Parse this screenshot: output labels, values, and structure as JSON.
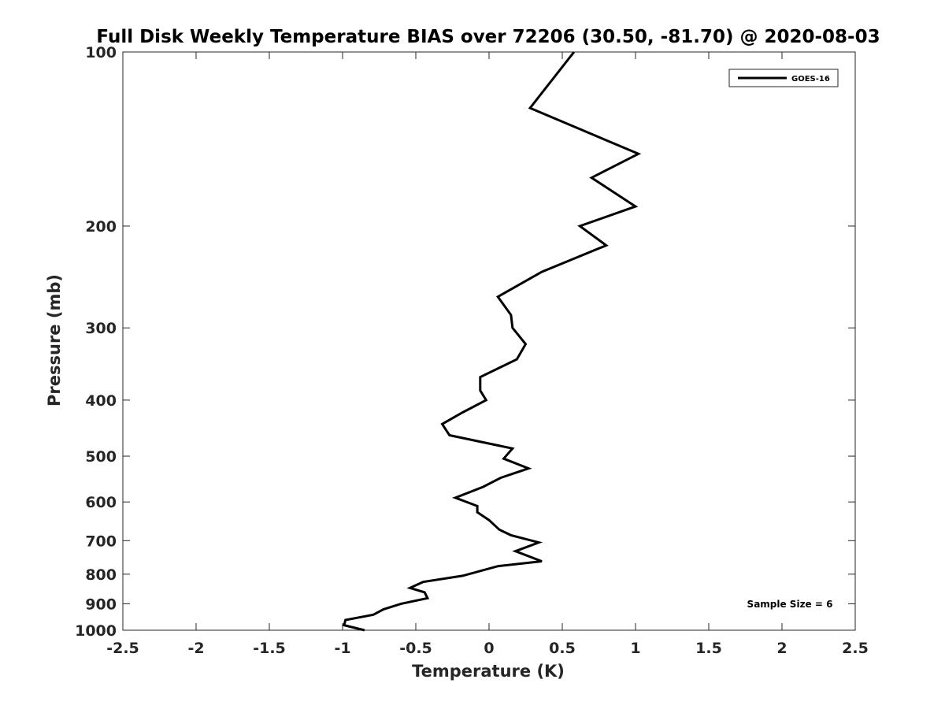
{
  "chart_data": {
    "type": "line",
    "title": "Full Disk Weekly Temperature BIAS over 72206 (30.50, -81.70) @ 2020-08-03",
    "xlabel": "Temperature (K)",
    "ylabel": "Pressure (mb)",
    "xlim": [
      -2.5,
      2.5
    ],
    "ylim": [
      100,
      1000
    ],
    "yscale": "log",
    "y_reversed": true,
    "x_ticks": [
      -2.5,
      -2,
      -1.5,
      -1,
      -0.5,
      0,
      0.5,
      1,
      1.5,
      2,
      2.5
    ],
    "x_tick_labels": [
      "-2.5",
      "-2",
      "-1.5",
      "-1",
      "-0.5",
      "0",
      "0.5",
      "1",
      "1.5",
      "2",
      "2.5"
    ],
    "y_ticks": [
      100,
      200,
      300,
      400,
      500,
      600,
      700,
      800,
      900,
      1000
    ],
    "y_tick_labels": [
      "100",
      "200",
      "300",
      "400",
      "500",
      "600",
      "700",
      "800",
      "900",
      "1000"
    ],
    "grid": false,
    "legend_position": "top-right",
    "series": [
      {
        "name": "GOES-16",
        "color": "#000000",
        "points": [
          {
            "x": 0.58,
            "y": 100
          },
          {
            "x": 0.28,
            "y": 125
          },
          {
            "x": 1.02,
            "y": 150
          },
          {
            "x": 0.7,
            "y": 165
          },
          {
            "x": 1.0,
            "y": 185
          },
          {
            "x": 0.62,
            "y": 200
          },
          {
            "x": 0.8,
            "y": 216
          },
          {
            "x": 0.36,
            "y": 240
          },
          {
            "x": 0.06,
            "y": 265
          },
          {
            "x": 0.15,
            "y": 285
          },
          {
            "x": 0.16,
            "y": 300
          },
          {
            "x": 0.25,
            "y": 320
          },
          {
            "x": 0.19,
            "y": 340
          },
          {
            "x": -0.06,
            "y": 365
          },
          {
            "x": -0.06,
            "y": 385
          },
          {
            "x": -0.02,
            "y": 400
          },
          {
            "x": -0.18,
            "y": 420
          },
          {
            "x": -0.32,
            "y": 440
          },
          {
            "x": -0.27,
            "y": 460
          },
          {
            "x": 0.16,
            "y": 485
          },
          {
            "x": 0.1,
            "y": 505
          },
          {
            "x": 0.27,
            "y": 525
          },
          {
            "x": 0.08,
            "y": 545
          },
          {
            "x": -0.04,
            "y": 565
          },
          {
            "x": -0.23,
            "y": 590
          },
          {
            "x": -0.08,
            "y": 610
          },
          {
            "x": -0.08,
            "y": 625
          },
          {
            "x": 0.0,
            "y": 645
          },
          {
            "x": 0.07,
            "y": 670
          },
          {
            "x": 0.15,
            "y": 685
          },
          {
            "x": 0.34,
            "y": 705
          },
          {
            "x": 0.18,
            "y": 730
          },
          {
            "x": 0.36,
            "y": 760
          },
          {
            "x": 0.06,
            "y": 775
          },
          {
            "x": -0.18,
            "y": 805
          },
          {
            "x": -0.45,
            "y": 825
          },
          {
            "x": -0.54,
            "y": 845
          },
          {
            "x": -0.44,
            "y": 860
          },
          {
            "x": -0.42,
            "y": 880
          },
          {
            "x": -0.6,
            "y": 900
          },
          {
            "x": -0.72,
            "y": 920
          },
          {
            "x": -0.79,
            "y": 940
          },
          {
            "x": -0.98,
            "y": 960
          },
          {
            "x": -0.99,
            "y": 980
          },
          {
            "x": -0.85,
            "y": 1000
          }
        ]
      }
    ],
    "annotations": [
      {
        "text": "Sample Size = 6",
        "position": "bottom-right"
      }
    ]
  }
}
